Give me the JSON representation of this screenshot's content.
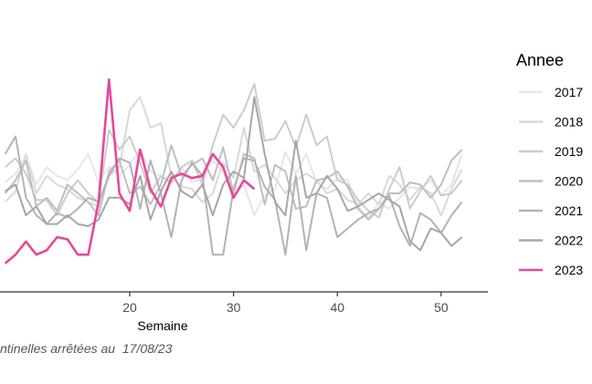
{
  "caption": "ntinelles arrêtées au  17/08/23",
  "chart_data": {
    "type": "line",
    "xlabel": "Semaine",
    "ylabel": "",
    "xlim": [
      7.5,
      54.5
    ],
    "ylim": [
      0,
      100
    ],
    "xticks": [
      20,
      30,
      40,
      50
    ],
    "legend_title": "Annee",
    "legend_position": "right",
    "grid": false,
    "series": [
      {
        "name": "2017",
        "color": "#e6e6e6",
        "x": [
          8,
          9,
          10,
          11,
          12,
          13,
          14,
          15,
          16,
          17,
          18,
          19,
          20,
          21,
          22,
          23,
          24,
          25,
          26,
          27,
          28,
          29,
          30,
          31,
          32,
          33,
          34,
          35,
          36,
          37,
          38,
          39,
          40,
          41,
          42,
          43,
          44,
          45,
          46,
          47,
          48,
          49,
          50,
          51,
          52
        ],
        "values": [
          45,
          49,
          57,
          44,
          52,
          48,
          46,
          51,
          58,
          45,
          52,
          48,
          53,
          60,
          50,
          48,
          44,
          52,
          45,
          47,
          55,
          50,
          38,
          44,
          30,
          39,
          42,
          59,
          49,
          58,
          45,
          42,
          47,
          46,
          34,
          29,
          36,
          33,
          38,
          43,
          42,
          46,
          39,
          44,
          58
        ]
      },
      {
        "name": "2018",
        "color": "#d9d9d9",
        "x": [
          8,
          9,
          10,
          11,
          12,
          13,
          14,
          15,
          16,
          17,
          18,
          19,
          20,
          21,
          22,
          23,
          24,
          25,
          26,
          27,
          28,
          29,
          30,
          31,
          32,
          33,
          34,
          35,
          36,
          37,
          38,
          39,
          40,
          41,
          42,
          43,
          44,
          45,
          46,
          47,
          48,
          49,
          50,
          51,
          52
        ],
        "values": [
          36,
          41,
          58,
          40,
          48,
          44,
          42,
          38,
          36,
          34,
          48,
          52,
          78,
          84,
          70,
          72,
          48,
          43,
          42,
          36,
          40,
          54,
          47,
          70,
          50,
          53,
          47,
          40,
          46,
          49,
          46,
          40,
          42,
          37,
          35,
          40,
          35,
          48,
          44,
          37,
          43,
          40,
          30,
          42,
          51
        ]
      },
      {
        "name": "2019",
        "color": "#cccccc",
        "x": [
          8,
          9,
          10,
          11,
          12,
          13,
          14,
          15,
          16,
          17,
          18,
          19,
          20,
          21,
          22,
          23,
          24,
          25,
          26,
          27,
          28,
          29,
          30,
          31,
          32,
          33,
          34,
          35,
          36,
          37,
          38,
          39,
          40,
          41,
          42,
          43,
          44,
          45,
          46,
          47,
          48,
          49,
          50,
          51,
          52
        ],
        "values": [
          52,
          56,
          49,
          37,
          37,
          30,
          40,
          46,
          40,
          36,
          69,
          60,
          66,
          54,
          40,
          48,
          45,
          52,
          55,
          44,
          62,
          76,
          70,
          78,
          90,
          64,
          65,
          73,
          61,
          76,
          62,
          66,
          46,
          44,
          37,
          32,
          29,
          42,
          52,
          33,
          41,
          48,
          39,
          40,
          46
        ]
      },
      {
        "name": "2020",
        "color": "#bfbfbf",
        "x": [
          8,
          9,
          10,
          11,
          12,
          13,
          14,
          15,
          16,
          17,
          18,
          19,
          20,
          21,
          22,
          23,
          24,
          25,
          26,
          27,
          28,
          29,
          30,
          31,
          32,
          33,
          34,
          35,
          36,
          37,
          38,
          39,
          40,
          41,
          42,
          43,
          44,
          45,
          46,
          47,
          48,
          49,
          50,
          51,
          52
        ],
        "values": [
          40,
          46,
          55,
          34,
          38,
          32,
          44,
          40,
          36,
          30,
          50,
          55,
          40,
          43,
          35,
          44,
          62,
          48,
          53,
          56,
          46,
          61,
          40,
          58,
          56,
          35,
          53,
          50,
          33,
          34,
          46,
          47,
          50,
          43,
          33,
          28,
          33,
          40,
          40,
          45,
          44,
          38,
          44,
          55,
          60
        ]
      },
      {
        "name": "2021",
        "color": "#b3b3b3",
        "x": [
          8,
          9,
          10,
          11,
          12,
          13,
          14,
          15,
          16,
          17,
          18,
          19,
          20,
          21,
          22,
          23,
          24,
          25,
          26,
          27,
          28,
          29,
          30,
          31,
          32,
          33,
          34,
          35,
          36,
          37,
          38,
          39,
          40,
          41,
          42,
          43,
          44,
          45,
          46,
          47,
          48,
          49,
          50,
          51,
          52
        ],
        "values": [
          58,
          66,
          38,
          30,
          26,
          31,
          29,
          33,
          38,
          36,
          48,
          56,
          54,
          33,
          55,
          40,
          20,
          46,
          54,
          48,
          12,
          12,
          42,
          56,
          55,
          43,
          37,
          12,
          48,
          14,
          40,
          38,
          20,
          24,
          28,
          31,
          33,
          39,
          25,
          16,
          31,
          28,
          22,
          30,
          36
        ]
      },
      {
        "name": "2022",
        "color": "#a6a6a6",
        "x": [
          8,
          9,
          10,
          11,
          12,
          13,
          14,
          15,
          16,
          17,
          18,
          19,
          20,
          21,
          22,
          23,
          24,
          25,
          26,
          27,
          28,
          29,
          30,
          31,
          32,
          33,
          34,
          35,
          36,
          37,
          38,
          39,
          40,
          41,
          42,
          43,
          44,
          45,
          46,
          47,
          48,
          49,
          50,
          51,
          52
        ],
        "values": [
          41,
          44,
          30,
          34,
          26,
          26,
          30,
          26,
          25,
          28,
          38,
          38,
          35,
          48,
          28,
          41,
          50,
          41,
          38,
          44,
          30,
          44,
          50,
          47,
          84,
          58,
          36,
          30,
          64,
          38,
          40,
          48,
          42,
          32,
          34,
          37,
          40,
          37,
          34,
          18,
          14,
          24,
          22,
          16,
          20
        ]
      },
      {
        "name": "2023",
        "color": "#e5489b",
        "x": [
          8,
          9,
          10,
          11,
          12,
          13,
          14,
          15,
          16,
          17,
          18,
          19,
          20,
          21,
          22,
          23,
          24,
          25,
          26,
          27,
          28,
          29,
          30,
          31,
          32
        ],
        "values": [
          8,
          12,
          18,
          12,
          14,
          20,
          19,
          12,
          12,
          36,
          92,
          40,
          32,
          60,
          42,
          34,
          47,
          49,
          47,
          48,
          58,
          52,
          38,
          46,
          42
        ]
      }
    ]
  }
}
